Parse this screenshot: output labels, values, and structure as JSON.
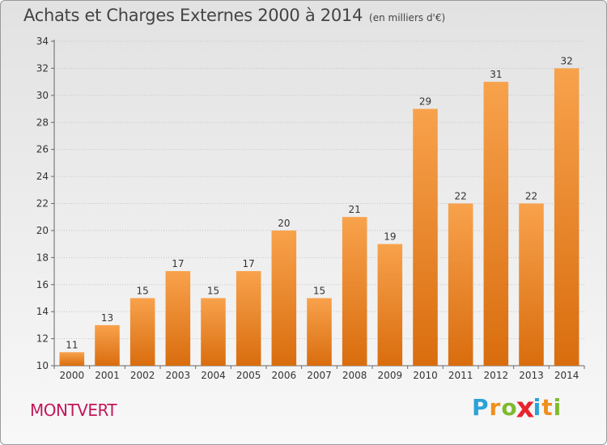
{
  "header": {
    "title": "Achats et Charges Externes 2000 à 2014",
    "unit": "(en milliers d'€)"
  },
  "footer": {
    "city": "MONTVERT",
    "brand_letters": [
      "P",
      "r",
      "o",
      "x",
      "i",
      "t",
      "i"
    ],
    "brand_colors": [
      "#2aa3d8",
      "#f0901c",
      "#7dbb2e",
      "#e8242c",
      "#2aa3d8",
      "#f0901c",
      "#7dbb2e"
    ]
  },
  "chart_data": {
    "type": "bar",
    "categories": [
      "2000",
      "2001",
      "2002",
      "2003",
      "2004",
      "2005",
      "2006",
      "2007",
      "2008",
      "2009",
      "2010",
      "2011",
      "2012",
      "2013",
      "2014"
    ],
    "values": [
      11,
      13,
      15,
      17,
      15,
      17,
      20,
      15,
      21,
      19,
      29,
      22,
      31,
      22,
      32
    ],
    "value_labels": [
      "11",
      "13",
      "15",
      "17",
      "15",
      "17",
      "20",
      "15",
      "21",
      "19",
      "29",
      "22",
      "31",
      "22",
      "32"
    ],
    "y_ticks": [
      10,
      12,
      14,
      16,
      18,
      20,
      22,
      24,
      26,
      28,
      30,
      32,
      34
    ],
    "y_tick_labels": [
      "10",
      "12",
      "14",
      "16",
      "18",
      "20",
      "22",
      "24",
      "26",
      "28",
      "30",
      "32",
      "34"
    ],
    "ylim": [
      10,
      34
    ],
    "grid": true,
    "bar_color_top": "#f8a24c",
    "bar_color_bottom": "#d96d0e",
    "title": "Achats et Charges Externes 2000 à 2014",
    "xlabel": "",
    "ylabel": ""
  }
}
